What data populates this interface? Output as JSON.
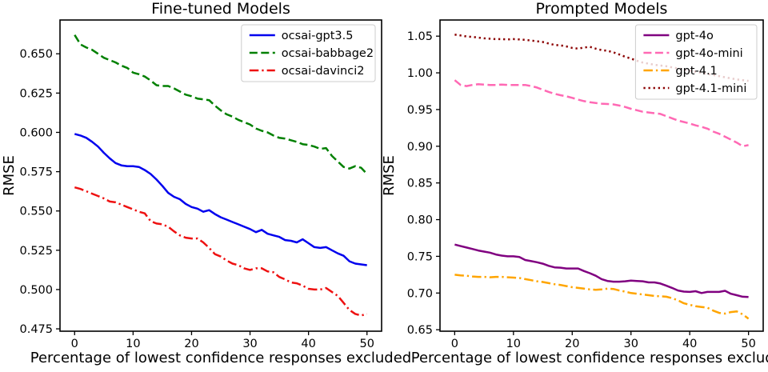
{
  "figure": {
    "background": "#ffffff",
    "text_color": "#000000",
    "legend_border_color": "#cccccc",
    "legend_face_color": "#ffffff"
  },
  "chart_data": [
    {
      "type": "line",
      "title": "Fine-tuned Models",
      "xlabel": "Percentage of lowest confidence responses excluded",
      "ylabel": "RMSE",
      "grid": false,
      "legend_position": "upper right",
      "xlim": [
        -2.5,
        52.5
      ],
      "ylim": [
        0.4735,
        0.6715
      ],
      "xticks": [
        0,
        10,
        20,
        30,
        40,
        50
      ],
      "yticks": [
        0.475,
        0.5,
        0.525,
        0.55,
        0.575,
        0.6,
        0.625,
        0.65
      ],
      "ytick_labels": [
        "0.475",
        "0.500",
        "0.525",
        "0.550",
        "0.575",
        "0.600",
        "0.625",
        "0.650"
      ],
      "x": [
        0,
        1,
        2,
        3,
        4,
        5,
        6,
        7,
        8,
        9,
        10,
        11,
        12,
        13,
        14,
        15,
        16,
        17,
        18,
        19,
        20,
        21,
        22,
        23,
        24,
        25,
        26,
        27,
        28,
        29,
        30,
        31,
        32,
        33,
        34,
        35,
        36,
        37,
        38,
        39,
        40,
        41,
        42,
        43,
        44,
        45,
        46,
        47,
        48,
        49,
        50
      ],
      "series": [
        {
          "name": "ocsai-gpt3.5",
          "color": "#0000ee",
          "linestyle": "solid",
          "values": [
            0.599,
            0.598,
            0.5965,
            0.594,
            0.591,
            0.587,
            0.5835,
            0.5805,
            0.579,
            0.5785,
            0.5785,
            0.578,
            0.576,
            0.5735,
            0.57,
            0.566,
            0.5615,
            0.559,
            0.5575,
            0.5545,
            0.5525,
            0.5515,
            0.5495,
            0.5505,
            0.548,
            0.546,
            0.5445,
            0.543,
            0.5415,
            0.54,
            0.5385,
            0.5365,
            0.538,
            0.5355,
            0.5345,
            0.5335,
            0.5315,
            0.531,
            0.53,
            0.532,
            0.5295,
            0.527,
            0.5265,
            0.527,
            0.525,
            0.523,
            0.5215,
            0.518,
            0.5165,
            0.516,
            0.5155
          ]
        },
        {
          "name": "ocsai-babbage2",
          "color": "#008000",
          "linestyle": "dashed",
          "values": [
            0.662,
            0.656,
            0.654,
            0.6525,
            0.65,
            0.6475,
            0.646,
            0.6445,
            0.6425,
            0.641,
            0.638,
            0.637,
            0.6355,
            0.633,
            0.63,
            0.6295,
            0.6295,
            0.628,
            0.626,
            0.624,
            0.623,
            0.6215,
            0.621,
            0.6205,
            0.617,
            0.614,
            0.6115,
            0.61,
            0.608,
            0.6065,
            0.605,
            0.6025,
            0.601,
            0.6,
            0.598,
            0.5965,
            0.596,
            0.595,
            0.594,
            0.5925,
            0.592,
            0.591,
            0.5895,
            0.59,
            0.585,
            0.5815,
            0.578,
            0.577,
            0.5785,
            0.5775,
            0.5735
          ]
        },
        {
          "name": "ocsai-davinci2",
          "color": "#ee1111",
          "linestyle": "dashdot",
          "values": [
            0.565,
            0.564,
            0.5625,
            0.561,
            0.5595,
            0.558,
            0.556,
            0.5555,
            0.554,
            0.5525,
            0.551,
            0.5495,
            0.5485,
            0.5435,
            0.542,
            0.5415,
            0.54,
            0.537,
            0.5345,
            0.533,
            0.5325,
            0.5325,
            0.53,
            0.5265,
            0.5225,
            0.521,
            0.5185,
            0.5165,
            0.5155,
            0.5135,
            0.5125,
            0.5135,
            0.5135,
            0.5115,
            0.511,
            0.508,
            0.5065,
            0.5045,
            0.504,
            0.5025,
            0.5005,
            0.5,
            0.5,
            0.501,
            0.4985,
            0.496,
            0.4915,
            0.487,
            0.4845,
            0.4835,
            0.4845
          ]
        }
      ]
    },
    {
      "type": "line",
      "title": "Prompted Models",
      "xlabel": "Percentage of lowest confidence responses excluded",
      "ylabel": "RMSE",
      "grid": false,
      "legend_position": "upper right",
      "xlim": [
        -2.5,
        52.5
      ],
      "ylim": [
        0.648,
        1.072
      ],
      "xticks": [
        0,
        10,
        20,
        30,
        40,
        50
      ],
      "yticks": [
        0.65,
        0.7,
        0.75,
        0.8,
        0.85,
        0.9,
        0.95,
        1.0,
        1.05
      ],
      "ytick_labels": [
        "0.65",
        "0.70",
        "0.75",
        "0.80",
        "0.85",
        "0.90",
        "0.95",
        "1.00",
        "1.05"
      ],
      "x": [
        0,
        1,
        2,
        3,
        4,
        5,
        6,
        7,
        8,
        9,
        10,
        11,
        12,
        13,
        14,
        15,
        16,
        17,
        18,
        19,
        20,
        21,
        22,
        23,
        24,
        25,
        26,
        27,
        28,
        29,
        30,
        31,
        32,
        33,
        34,
        35,
        36,
        37,
        38,
        39,
        40,
        41,
        42,
        43,
        44,
        45,
        46,
        47,
        48,
        49,
        50
      ],
      "series": [
        {
          "name": "gpt-4o",
          "color": "#800080",
          "linestyle": "solid",
          "values": [
            0.766,
            0.764,
            0.762,
            0.76,
            0.758,
            0.7565,
            0.755,
            0.7525,
            0.751,
            0.75,
            0.75,
            0.749,
            0.745,
            0.7435,
            0.742,
            0.74,
            0.737,
            0.735,
            0.7345,
            0.7335,
            0.7335,
            0.7335,
            0.73,
            0.727,
            0.7235,
            0.719,
            0.7165,
            0.7155,
            0.7155,
            0.716,
            0.717,
            0.7165,
            0.716,
            0.7145,
            0.7145,
            0.713,
            0.71,
            0.707,
            0.7035,
            0.702,
            0.7015,
            0.7025,
            0.7,
            0.7015,
            0.7015,
            0.7015,
            0.703,
            0.699,
            0.697,
            0.695,
            0.6945
          ]
        },
        {
          "name": "gpt-4o-mini",
          "color": "#ff69b4",
          "linestyle": "dashed",
          "values": [
            0.99,
            0.9835,
            0.982,
            0.9835,
            0.9845,
            0.984,
            0.9835,
            0.9835,
            0.984,
            0.9835,
            0.9835,
            0.9835,
            0.9835,
            0.982,
            0.98,
            0.977,
            0.974,
            0.9715,
            0.9695,
            0.968,
            0.966,
            0.9635,
            0.9615,
            0.96,
            0.959,
            0.958,
            0.9575,
            0.957,
            0.9555,
            0.9535,
            0.951,
            0.949,
            0.947,
            0.946,
            0.945,
            0.944,
            0.941,
            0.938,
            0.935,
            0.933,
            0.931,
            0.9285,
            0.9265,
            0.924,
            0.92,
            0.917,
            0.913,
            0.909,
            0.905,
            0.9,
            0.9015
          ]
        },
        {
          "name": "gpt-4.1",
          "color": "#ffa500",
          "linestyle": "dashdot",
          "values": [
            0.725,
            0.724,
            0.7235,
            0.7225,
            0.722,
            0.722,
            0.7215,
            0.722,
            0.722,
            0.7215,
            0.721,
            0.7205,
            0.719,
            0.7175,
            0.716,
            0.715,
            0.7135,
            0.712,
            0.711,
            0.7095,
            0.708,
            0.707,
            0.706,
            0.705,
            0.7045,
            0.705,
            0.706,
            0.7055,
            0.7035,
            0.702,
            0.7,
            0.699,
            0.698,
            0.697,
            0.696,
            0.6955,
            0.695,
            0.693,
            0.69,
            0.686,
            0.684,
            0.682,
            0.681,
            0.68,
            0.676,
            0.673,
            0.672,
            0.674,
            0.675,
            0.671,
            0.665
          ]
        },
        {
          "name": "gpt-4.1-mini",
          "color": "#8b0000",
          "linestyle": "dotted",
          "values": [
            1.052,
            1.051,
            1.0495,
            1.049,
            1.048,
            1.047,
            1.0465,
            1.046,
            1.046,
            1.0455,
            1.046,
            1.0455,
            1.045,
            1.044,
            1.043,
            1.042,
            1.04,
            1.038,
            1.0375,
            1.036,
            1.034,
            1.033,
            1.0345,
            1.0355,
            1.033,
            1.031,
            1.03,
            1.028,
            1.025,
            1.022,
            1.0195,
            1.0165,
            1.014,
            1.0125,
            1.011,
            1.01,
            1.009,
            1.0075,
            1.006,
            1.0045,
            1.003,
            1.0015,
            1.0,
            0.9985,
            0.997,
            0.9955,
            0.994,
            0.9925,
            0.991,
            0.99,
            0.989
          ]
        }
      ]
    }
  ]
}
